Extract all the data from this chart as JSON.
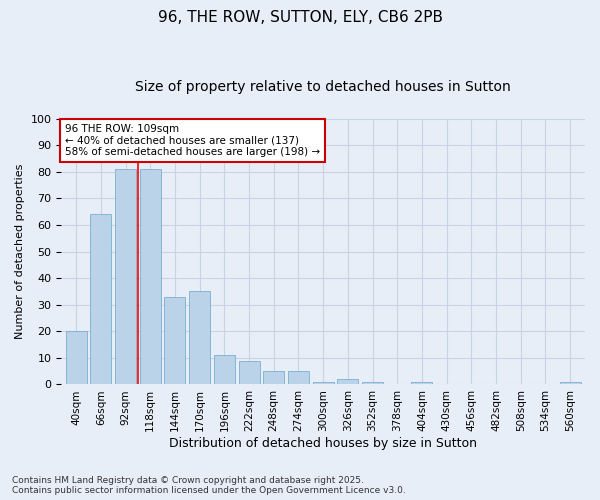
{
  "title1": "96, THE ROW, SUTTON, ELY, CB6 2PB",
  "title2": "Size of property relative to detached houses in Sutton",
  "xlabel": "Distribution of detached houses by size in Sutton",
  "ylabel": "Number of detached properties",
  "categories": [
    "40sqm",
    "66sqm",
    "92sqm",
    "118sqm",
    "144sqm",
    "170sqm",
    "196sqm",
    "222sqm",
    "248sqm",
    "274sqm",
    "300sqm",
    "326sqm",
    "352sqm",
    "378sqm",
    "404sqm",
    "430sqm",
    "456sqm",
    "482sqm",
    "508sqm",
    "534sqm",
    "560sqm"
  ],
  "values": [
    20,
    64,
    81,
    81,
    33,
    35,
    11,
    9,
    5,
    5,
    1,
    2,
    1,
    0,
    1,
    0,
    0,
    0,
    0,
    0,
    1
  ],
  "bar_color": "#bad3e8",
  "bar_edge_color": "#7aafd0",
  "vline_x": 2.5,
  "annotation_text": "96 THE ROW: 109sqm\n← 40% of detached houses are smaller (137)\n58% of semi-detached houses are larger (198) →",
  "annotation_box_color": "#ffffff",
  "annotation_box_edge": "#cc0000",
  "grid_color": "#c8d4e4",
  "bg_color": "#e8eef8",
  "footer": "Contains HM Land Registry data © Crown copyright and database right 2025.\nContains public sector information licensed under the Open Government Licence v3.0.",
  "ylim": [
    0,
    100
  ],
  "title1_fontsize": 11,
  "title2_fontsize": 10,
  "footer_fontsize": 6.5,
  "ylabel_fontsize": 8,
  "xlabel_fontsize": 9
}
